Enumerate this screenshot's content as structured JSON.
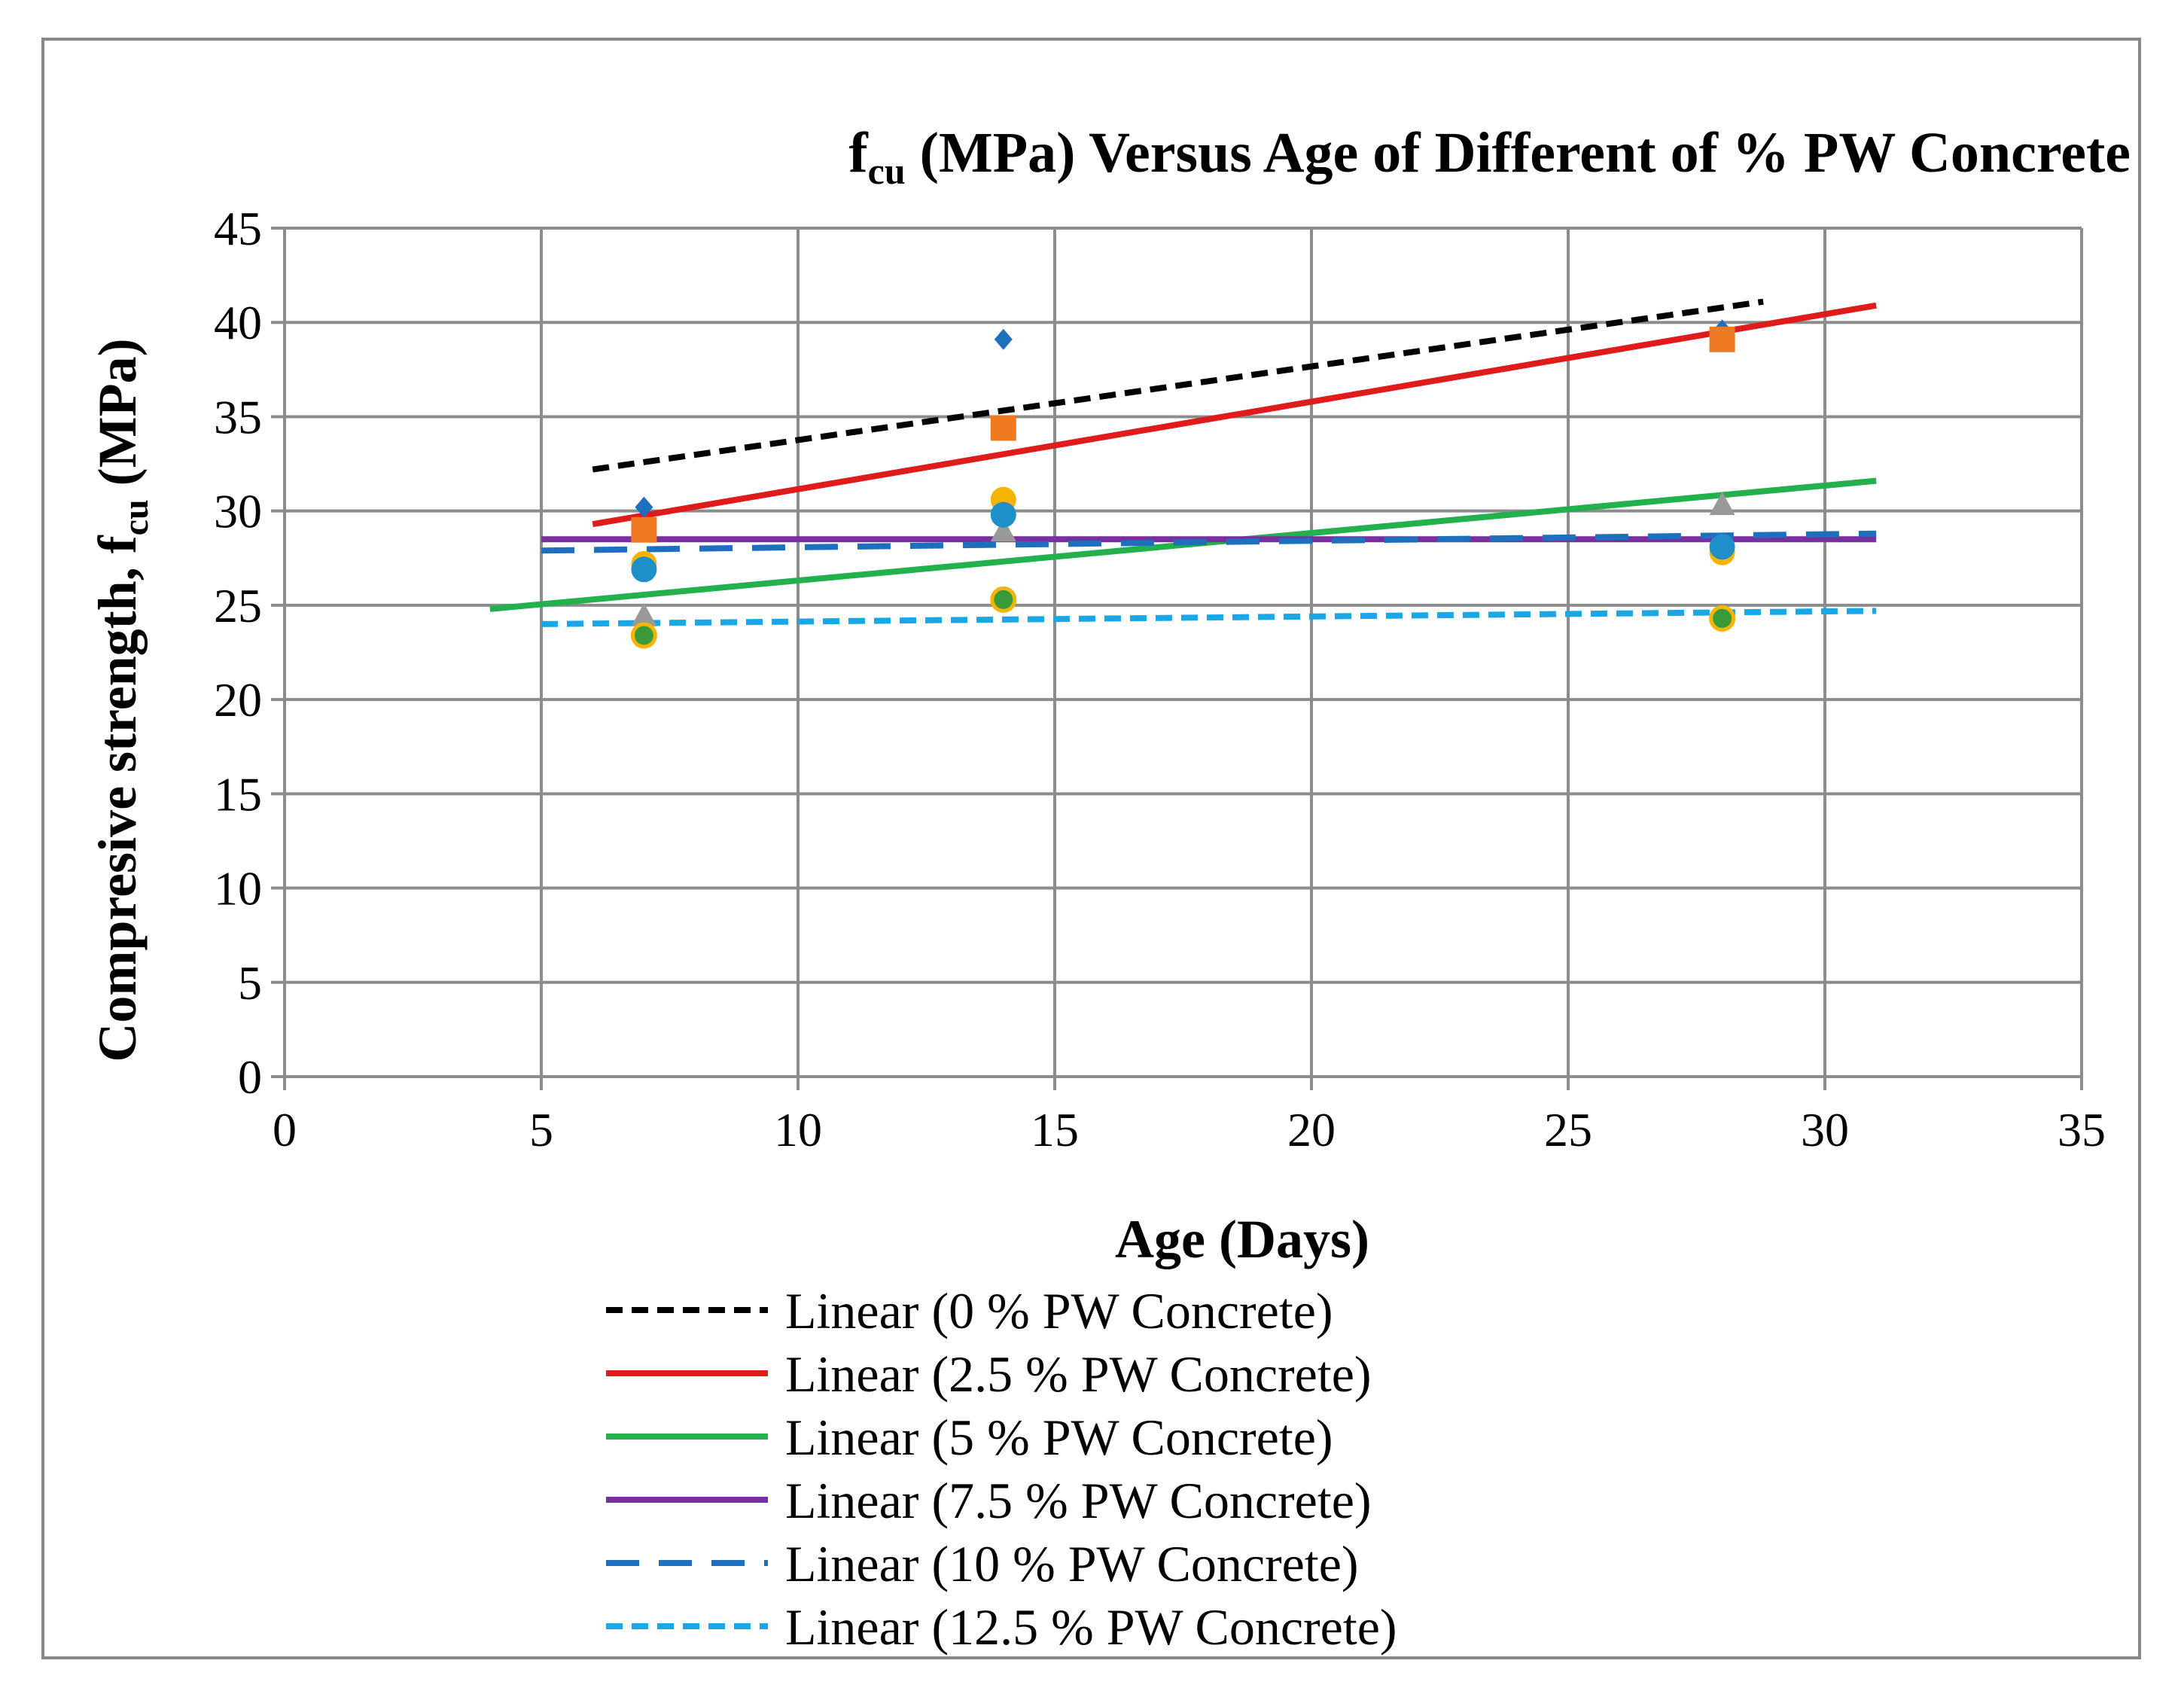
{
  "chart_data": {
    "type": "scatter",
    "title_main": "f",
    "title_sub": "cu",
    "title_rest": " (MPa) Versus Age of Different  of % PW Concrete",
    "xlabel": "Age (Days)",
    "ylabel_main": "Compresive strength, f",
    "ylabel_sub": "cu",
    "ylabel_rest": " (MPa)",
    "xlim": [
      0,
      35
    ],
    "ylim": [
      0,
      45
    ],
    "xticks": [
      "0",
      "5",
      "10",
      "15",
      "20",
      "25",
      "30",
      "35"
    ],
    "yticks": [
      "0",
      "5",
      "10",
      "15",
      "20",
      "25",
      "30",
      "35",
      "40",
      "45"
    ],
    "grid": true,
    "legend_position": "bottom",
    "series": [
      {
        "name": "0 % PW Concrete",
        "marker": "diamond",
        "marker_color": "#1f6fbf",
        "x": [
          7,
          14,
          28
        ],
        "y": [
          30.2,
          39.1,
          39.6
        ],
        "trend": {
          "label": "Linear (0 % PW Concrete)",
          "color": "#000000",
          "dash": "dash",
          "x": [
            6,
            28.8
          ],
          "y": [
            32.2,
            41.1
          ]
        }
      },
      {
        "name": "2.5 % PW Concrete",
        "marker": "square",
        "marker_color": "#f07a22",
        "x": [
          7,
          14,
          28
        ],
        "y": [
          29.0,
          34.4,
          39.1
        ],
        "trend": {
          "label": "Linear (2.5 % PW Concrete)",
          "color": "#e01b1b",
          "dash": "solid",
          "x": [
            6,
            31
          ],
          "y": [
            29.3,
            40.9
          ]
        }
      },
      {
        "name": "5 % PW Concrete",
        "marker": "triangle",
        "marker_color": "#999999",
        "x": [
          7,
          14,
          28
        ],
        "y": [
          24.4,
          28.9,
          30.3
        ],
        "trend": {
          "label": "Linear (5 % PW Concrete)",
          "color": "#22b14c",
          "dash": "solid",
          "x": [
            4,
            31
          ],
          "y": [
            24.8,
            31.6
          ]
        }
      },
      {
        "name": "7.5 % PW Concrete",
        "marker": "circle",
        "marker_color": "#f5b400",
        "x": [
          7,
          14,
          28
        ],
        "y": [
          27.2,
          30.6,
          27.8
        ],
        "trend": {
          "label": "Linear (7.5 % PW Concrete)",
          "color": "#7a2f9e",
          "dash": "solid",
          "x": [
            5,
            31
          ],
          "y": [
            28.5,
            28.5
          ]
        }
      },
      {
        "name": "10 % PW Concrete",
        "marker": "circle",
        "marker_color": "#1f8fc9",
        "x": [
          7,
          14,
          28
        ],
        "y": [
          26.9,
          29.8,
          28.1
        ],
        "trend": {
          "label": "Linear (10 % PW Concrete)",
          "color": "#1f6fbf",
          "dash": "longdash",
          "x": [
            5,
            31
          ],
          "y": [
            27.9,
            28.8
          ]
        }
      },
      {
        "name": "12.5 % PW Concrete",
        "marker": "circle-green",
        "marker_color": "#3a9a3a",
        "x": [
          7,
          14,
          28
        ],
        "y": [
          23.4,
          25.3,
          24.3
        ],
        "trend": {
          "label": "Linear (12.5 % PW Concrete)",
          "color": "#1aa7e6",
          "dash": "dash",
          "x": [
            5,
            31
          ],
          "y": [
            24.0,
            24.7
          ]
        }
      }
    ]
  }
}
